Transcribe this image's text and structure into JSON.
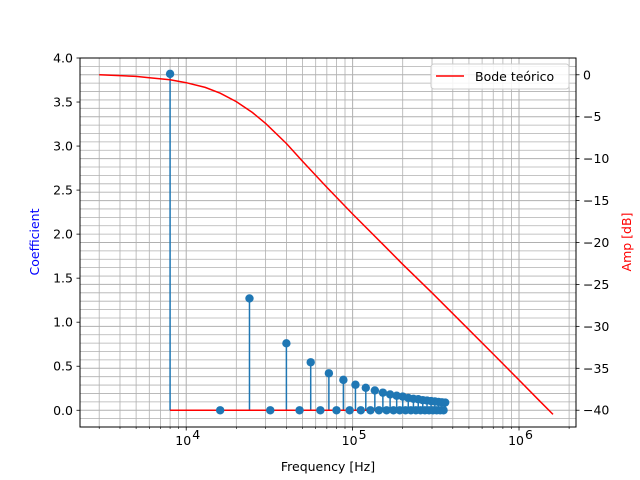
{
  "chart_data": {
    "type": "stem+line",
    "title": "",
    "xlabel": "Frequency [Hz]",
    "ylabel_left": "Coefficient",
    "ylabel_right": "Amp [dB]",
    "ylabel_left_color": "#0000ff",
    "ylabel_right_color": "#ff0000",
    "x_scale": "log",
    "xlim": [
      2300,
      2200000
    ],
    "ylim_left": [
      -0.19,
      4.0
    ],
    "ylim_right": [
      -42,
      2
    ],
    "grid": "both-major-minor",
    "x_ticks": [
      {
        "value": 10000,
        "base": "10",
        "exp": "4"
      },
      {
        "value": 100000,
        "base": "10",
        "exp": "5"
      },
      {
        "value": 1000000,
        "base": "10",
        "exp": "6"
      }
    ],
    "y_left_ticks": [
      {
        "value": 0.0,
        "label": "0.0"
      },
      {
        "value": 0.5,
        "label": "0.5"
      },
      {
        "value": 1.0,
        "label": "1.0"
      },
      {
        "value": 1.5,
        "label": "1.5"
      },
      {
        "value": 2.0,
        "label": "2.0"
      },
      {
        "value": 2.5,
        "label": "2.5"
      },
      {
        "value": 3.0,
        "label": "3.0"
      },
      {
        "value": 3.5,
        "label": "3.5"
      },
      {
        "value": 4.0,
        "label": "4.0"
      }
    ],
    "y_right_ticks": [
      {
        "value": 0,
        "label": "0"
      },
      {
        "value": -5,
        "label": "−5"
      },
      {
        "value": -10,
        "label": "−10"
      },
      {
        "value": -15,
        "label": "−15"
      },
      {
        "value": -20,
        "label": "−20"
      },
      {
        "value": -25,
        "label": "−25"
      },
      {
        "value": -30,
        "label": "−30"
      },
      {
        "value": -35,
        "label": "−35"
      },
      {
        "value": -40,
        "label": "−40"
      }
    ],
    "stem_series": {
      "color": "#1f77b4",
      "baseline_color": "#ff0000",
      "baseline_x": [
        8000,
        360000
      ],
      "x": [
        8000,
        16000,
        24000,
        32000,
        40000,
        48000,
        56000,
        64000,
        72000,
        80000,
        88000,
        96000,
        104000,
        112000,
        120000,
        128000,
        136000,
        144000,
        152000,
        160000,
        168000,
        176000,
        184000,
        192000,
        200000,
        208000,
        216000,
        224000,
        232000,
        240000,
        248000,
        256000,
        264000,
        272000,
        280000,
        288000,
        296000,
        304000,
        312000,
        320000,
        328000,
        336000,
        344000,
        352000,
        360000
      ],
      "values": [
        3.82,
        0.0,
        1.27,
        0.0,
        0.76,
        0.0,
        0.545,
        0.0,
        0.42,
        0.0,
        0.345,
        0.0,
        0.29,
        0.0,
        0.255,
        0.0,
        0.225,
        0.0,
        0.2,
        0.0,
        0.18,
        0.0,
        0.165,
        0.0,
        0.155,
        0.0,
        0.14,
        0.0,
        0.13,
        0.0,
        0.125,
        0.0,
        0.115,
        0.0,
        0.11,
        0.0,
        0.105,
        0.0,
        0.1,
        0.0,
        0.095,
        0.0,
        0.09,
        0.0,
        0.088
      ]
    },
    "line_series": {
      "name": "Bode teórico",
      "color": "#ff0000",
      "axis": "right",
      "x": [
        3000,
        4000,
        5000,
        6000,
        8000,
        10000,
        13000,
        16000,
        20000,
        25000,
        30000,
        40000,
        50000,
        70000,
        100000,
        150000,
        200000,
        300000,
        500000,
        700000,
        1000000,
        1300000,
        1600000
      ],
      "values": [
        0.0,
        -0.1,
        -0.2,
        -0.35,
        -0.6,
        -0.95,
        -1.5,
        -2.2,
        -3.2,
        -4.5,
        -5.8,
        -8.2,
        -10.3,
        -13.4,
        -16.6,
        -20.1,
        -22.6,
        -26.0,
        -30.4,
        -33.3,
        -36.4,
        -38.7,
        -40.5
      ]
    },
    "legend": {
      "placement": "top-right",
      "entries": [
        "Bode teórico"
      ]
    }
  }
}
